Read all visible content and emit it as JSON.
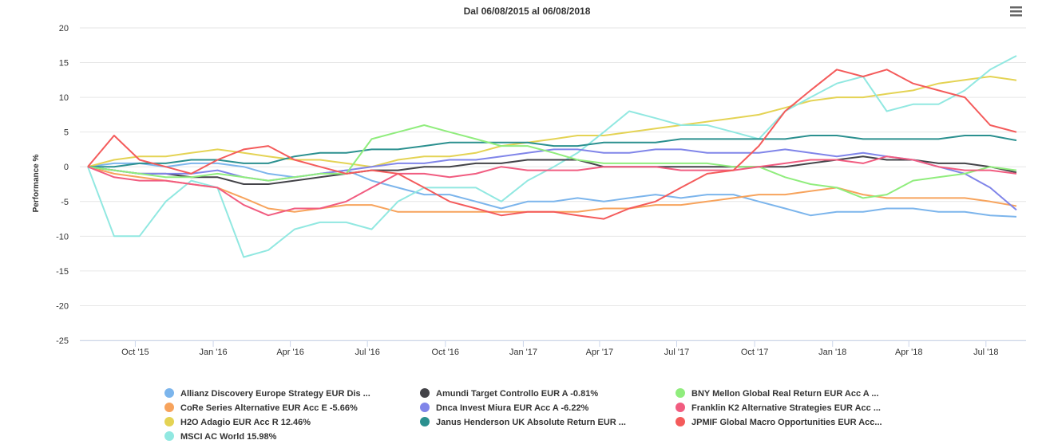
{
  "chart_data": {
    "type": "line",
    "title": "Dal 06/08/2015 al 06/08/2018",
    "ylabel": "Performance %",
    "xlabel": "",
    "ylim": [
      -25,
      20
    ],
    "yticks": [
      20,
      15,
      10,
      5,
      0,
      -5,
      -10,
      -15,
      -20,
      -25
    ],
    "x_tick_labels": [
      "Oct '15",
      "Jan '16",
      "Apr '16",
      "Jul '16",
      "Oct '16",
      "Jan '17",
      "Apr '17",
      "Jul '17",
      "Oct '17",
      "Jan '18",
      "Apr '18",
      "Jul '18"
    ],
    "x_tick_dates": [
      "2015-10-01",
      "2016-01-01",
      "2016-04-01",
      "2016-07-01",
      "2016-10-01",
      "2017-01-01",
      "2017-04-01",
      "2017-07-01",
      "2017-10-01",
      "2018-01-01",
      "2018-04-01",
      "2018-07-01"
    ],
    "xlim": [
      "2015-08-06",
      "2018-08-06"
    ],
    "grid": "horizontal",
    "legend_position": "bottom",
    "x": [
      "2015-08-06",
      "2015-09-06",
      "2015-10-06",
      "2015-11-06",
      "2015-12-06",
      "2016-01-06",
      "2016-02-06",
      "2016-03-06",
      "2016-04-06",
      "2016-05-06",
      "2016-06-06",
      "2016-07-06",
      "2016-08-06",
      "2016-09-06",
      "2016-10-06",
      "2016-11-06",
      "2016-12-06",
      "2017-01-06",
      "2017-02-06",
      "2017-03-06",
      "2017-04-06",
      "2017-05-06",
      "2017-06-06",
      "2017-07-06",
      "2017-08-06",
      "2017-09-06",
      "2017-10-06",
      "2017-11-06",
      "2017-12-06",
      "2018-01-06",
      "2018-02-06",
      "2018-03-06",
      "2018-04-06",
      "2018-05-06",
      "2018-06-06",
      "2018-07-06",
      "2018-08-06"
    ],
    "series": [
      {
        "name": "Allianz Discovery Europe Strategy EUR Dis ...",
        "color": "#7cb5ec",
        "values": [
          0,
          0.5,
          0.5,
          0,
          0.5,
          0.5,
          0,
          -1,
          -1.5,
          -1,
          -0.5,
          -2,
          -3,
          -4,
          -4,
          -5,
          -6,
          -5,
          -5,
          -4.5,
          -5,
          -4.5,
          -4,
          -4.5,
          -4,
          -4,
          -5,
          -6,
          -7,
          -6.5,
          -6.5,
          -6,
          -6,
          -6.5,
          -6.5,
          -7,
          -7.2
        ]
      },
      {
        "name": "Amundi Target Controllo EUR A -0.81%",
        "color": "#434348",
        "values": [
          0,
          -0.5,
          -1,
          -1,
          -1.5,
          -1.5,
          -2.5,
          -2.5,
          -2,
          -1.5,
          -1,
          -0.5,
          -0.5,
          0,
          0,
          0.5,
          0.5,
          1,
          1,
          1,
          0,
          0,
          0,
          0,
          0,
          0,
          0,
          0,
          0.5,
          1,
          1.5,
          1,
          1,
          0.5,
          0.5,
          0,
          -0.81
        ]
      },
      {
        "name": "BNY Mellon Global Real Return EUR Acc A ...",
        "color": "#90ed7d",
        "values": [
          0,
          -0.5,
          -1,
          -1.5,
          -1.5,
          -1,
          -1.5,
          -2,
          -1.5,
          -1,
          -1,
          4,
          5,
          6,
          5,
          4,
          3,
          3,
          2,
          1,
          0.5,
          0.5,
          0.5,
          0.5,
          0.5,
          0,
          0,
          -1.5,
          -2.5,
          -3,
          -4.5,
          -4,
          -2,
          -1.5,
          -1,
          0,
          -0.5
        ]
      },
      {
        "name": "CoRe Series Alternative EUR Acc E -5.66%",
        "color": "#f7a35c",
        "values": [
          0,
          -1,
          -1.5,
          -2,
          -2.5,
          -3,
          -4.5,
          -6,
          -6.5,
          -6,
          -5.5,
          -5.5,
          -6.5,
          -6.5,
          -6.5,
          -6.5,
          -6.5,
          -6.5,
          -6.5,
          -6.5,
          -6,
          -6,
          -5.5,
          -5.5,
          -5,
          -4.5,
          -4,
          -4,
          -3.5,
          -3,
          -4,
          -4.5,
          -4.5,
          -4.5,
          -4.5,
          -5,
          -5.66
        ]
      },
      {
        "name": "Dnca Invest Miura EUR Acc A -6.22%",
        "color": "#8085e9",
        "values": [
          0,
          -0.5,
          -1,
          -1,
          -1,
          -0.5,
          -1.5,
          -2,
          -1.5,
          -1,
          -0.5,
          0,
          0.5,
          0.5,
          1,
          1,
          1.5,
          2,
          2.5,
          2.5,
          2,
          2,
          2.5,
          2.5,
          2,
          2,
          2,
          2.5,
          2,
          1.5,
          2,
          1.5,
          1,
          0,
          -1,
          -3,
          -6.22
        ]
      },
      {
        "name": "Franklin K2 Alternative Strategies EUR Acc ...",
        "color": "#f15c80",
        "values": [
          0,
          -1.5,
          -2,
          -2,
          -2.5,
          -3,
          -5.5,
          -7,
          -6,
          -6,
          -5,
          -3,
          -1,
          -1,
          -1.5,
          -1,
          0,
          -0.5,
          -0.5,
          -0.5,
          0,
          0,
          0,
          -0.5,
          -0.5,
          -0.5,
          0,
          0.5,
          1,
          1,
          0.5,
          1.5,
          1,
          0,
          -0.5,
          -0.5,
          -1
        ]
      },
      {
        "name": "H2O Adagio EUR Acc R 12.46%",
        "color": "#e4d354",
        "values": [
          0,
          1,
          1.5,
          1.5,
          2,
          2.5,
          2,
          1.5,
          1,
          1,
          0.5,
          0,
          1,
          1.5,
          1.5,
          2,
          3,
          3.5,
          4,
          4.5,
          4.5,
          5,
          5.5,
          6,
          6.5,
          7,
          7.5,
          8.5,
          9.5,
          10,
          10,
          10.5,
          11,
          12,
          12.5,
          13,
          12.46
        ]
      },
      {
        "name": "Janus Henderson UK Absolute Return EUR ...",
        "color": "#2b908f",
        "values": [
          0,
          0,
          0.5,
          0.5,
          1,
          1,
          0.5,
          0.5,
          1.5,
          2,
          2,
          2.5,
          2.5,
          3,
          3.5,
          3.5,
          3.5,
          3.5,
          3,
          3,
          3.5,
          3.5,
          3.5,
          4,
          4,
          4,
          4,
          4,
          4.5,
          4.5,
          4,
          4,
          4,
          4,
          4.5,
          4.5,
          3.8
        ]
      },
      {
        "name": "JPMIF Global Macro Opportunities EUR Acc...",
        "color": "#f45b5b",
        "values": [
          0,
          4.5,
          1,
          0,
          -1,
          1,
          2.5,
          3,
          1,
          0,
          -1,
          -0.5,
          -1,
          -3,
          -5,
          -6,
          -7,
          -6.5,
          -6.5,
          -7,
          -7.5,
          -6,
          -5,
          -3,
          -1,
          -0.5,
          3,
          8,
          11,
          14,
          13,
          14,
          12,
          11,
          10,
          6,
          5
        ]
      },
      {
        "name": "MSCI AC World 15.98%",
        "color": "#91e8e1",
        "values": [
          0,
          -10,
          -10,
          -5,
          -2,
          -3,
          -13,
          -12,
          -9,
          -8,
          -8,
          -9,
          -5,
          -3,
          -3,
          -3,
          -5,
          -2,
          0,
          2,
          5,
          8,
          7,
          6,
          6,
          5,
          4,
          8,
          10,
          12,
          13,
          8,
          9,
          9,
          11,
          14,
          15.98
        ]
      }
    ]
  },
  "ui": {
    "menu_icon": "hamburger-menu-icon"
  }
}
